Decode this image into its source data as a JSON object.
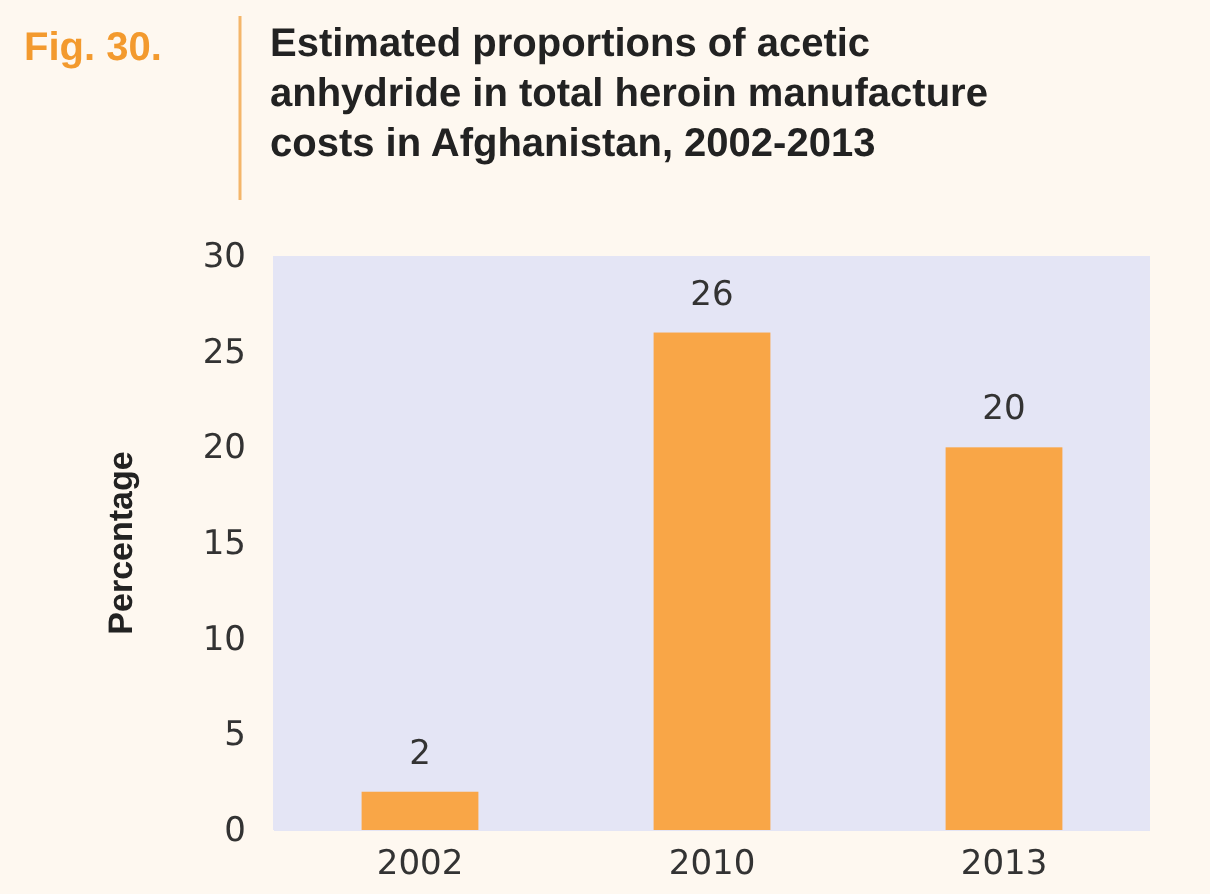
{
  "chart_data": {
    "type": "bar",
    "title": "Estimated proportions of acetic anhydride in total heroin manufacture costs in Afghanistan, 2002-2013",
    "annotations": [
      "Fig. 30."
    ],
    "ylabel": "Percentage",
    "categories": [
      "2002",
      "2010",
      "2013"
    ],
    "values": [
      2,
      26,
      20
    ],
    "color": "#f9a647",
    "ylim": [
      0,
      30
    ],
    "yticks": [
      0,
      5,
      10,
      15,
      20,
      25,
      30
    ],
    "data_labels": true
  }
}
